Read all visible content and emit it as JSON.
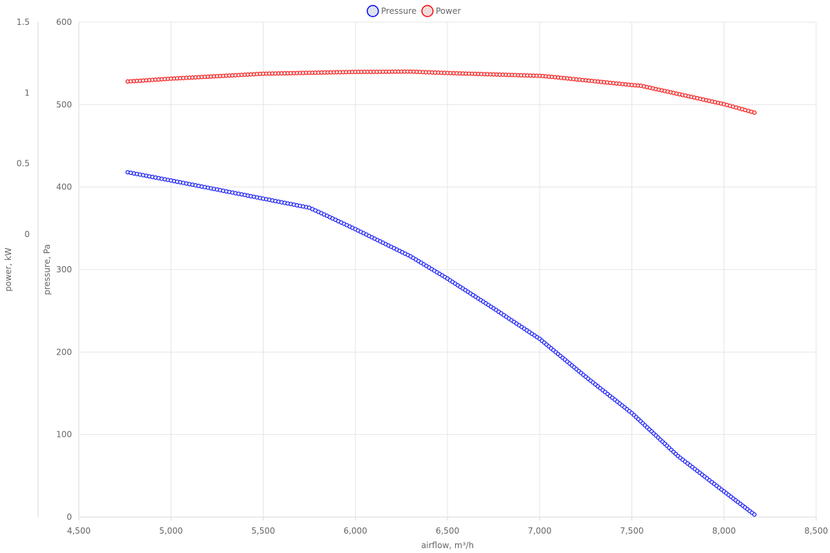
{
  "chart_data": {
    "type": "line",
    "legend_position": "top-center",
    "grid": true,
    "xlabel": "airflow, m³/h",
    "xlim": [
      4500,
      8500
    ],
    "x_ticks": [
      4500,
      5000,
      5500,
      6000,
      6500,
      7000,
      7500,
      8000,
      8500
    ],
    "x_tick_labels": [
      "4,500",
      "5,000",
      "5,500",
      "6,000",
      "6,500",
      "7,000",
      "7,500",
      "8,000",
      "8,500"
    ],
    "y_axes": [
      {
        "id": "pressure",
        "label": "pressure, Pa",
        "lim": [
          0,
          600
        ],
        "ticks": [
          0,
          100,
          200,
          300,
          400,
          500,
          600
        ],
        "tick_labels": [
          "0",
          "100",
          "200",
          "300",
          "400",
          "500",
          "600"
        ]
      },
      {
        "id": "power",
        "label": "power, kW",
        "lim": [
          -2,
          1.5
        ],
        "ticks": [
          0,
          0.5,
          1,
          1.5
        ],
        "tick_labels": [
          "0",
          "0.5",
          "1",
          "1.5"
        ]
      }
    ],
    "series": [
      {
        "name": "Pressure",
        "axis": "pressure",
        "color": "#0000ff",
        "marker_fill": "#dde3f0",
        "points": [
          [
            4765,
            418
          ],
          [
            5000,
            408
          ],
          [
            5250,
            397
          ],
          [
            5500,
            386
          ],
          [
            5750,
            375
          ],
          [
            5800,
            370
          ],
          [
            6000,
            349
          ],
          [
            6300,
            316
          ],
          [
            6500,
            289
          ],
          [
            6750,
            253
          ],
          [
            7000,
            216
          ],
          [
            7250,
            170
          ],
          [
            7500,
            126
          ],
          [
            7750,
            74
          ],
          [
            8000,
            31
          ],
          [
            8165,
            3
          ]
        ]
      },
      {
        "name": "Power",
        "axis": "power",
        "color": "#ff0000",
        "marker_fill": "#eedddd",
        "points": [
          [
            4765,
            1.08
          ],
          [
            5000,
            1.1
          ],
          [
            5500,
            1.135
          ],
          [
            6000,
            1.148
          ],
          [
            6300,
            1.15
          ],
          [
            6500,
            1.14
          ],
          [
            7000,
            1.12
          ],
          [
            7050,
            1.115
          ],
          [
            7500,
            1.055
          ],
          [
            7550,
            1.05
          ],
          [
            8000,
            0.92
          ],
          [
            8165,
            0.86
          ]
        ]
      }
    ]
  }
}
